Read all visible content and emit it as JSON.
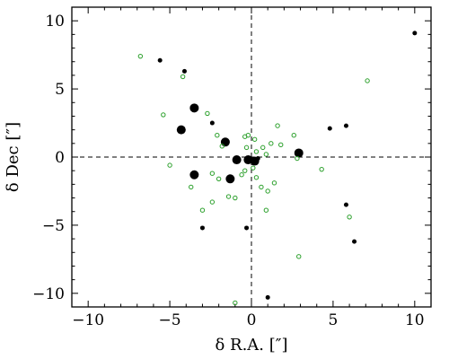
{
  "chart_data": {
    "type": "scatter",
    "title": "",
    "xlabel": "δ R.A. [″]",
    "ylabel": "δ Dec [″]",
    "xlim": [
      -11,
      11
    ],
    "ylim": [
      -11,
      11
    ],
    "xticks": [
      -10,
      -5,
      0,
      5,
      10
    ],
    "yticks": [
      -10,
      -5,
      0,
      5,
      10
    ],
    "xtick_labels": [
      "−10",
      "−5",
      "0",
      "5",
      "10"
    ],
    "ytick_labels": [
      "−10",
      "−5",
      "0",
      "5",
      "10"
    ],
    "reference_lines": {
      "x": 0,
      "y": 0,
      "style": "dashed"
    },
    "grid": false,
    "legend": "none",
    "series": [
      {
        "marker": "filled-circle",
        "color": "#000000",
        "points": [
          {
            "x": -5.6,
            "y": 7.1,
            "size": "small"
          },
          {
            "x": -4.1,
            "y": 6.3,
            "size": "small"
          },
          {
            "x": -3.5,
            "y": 3.6,
            "size": "large"
          },
          {
            "x": -4.3,
            "y": 2.0,
            "size": "large"
          },
          {
            "x": -2.4,
            "y": 2.5,
            "size": "small"
          },
          {
            "x": -1.6,
            "y": 1.1,
            "size": "large"
          },
          {
            "x": -3.5,
            "y": -1.3,
            "size": "large"
          },
          {
            "x": -1.3,
            "y": -1.6,
            "size": "large"
          },
          {
            "x": -0.9,
            "y": -0.2,
            "size": "large"
          },
          {
            "x": -0.2,
            "y": -0.2,
            "size": "large"
          },
          {
            "x": 0.2,
            "y": -0.3,
            "size": "large"
          },
          {
            "x": 0.4,
            "y": -0.1,
            "size": "small"
          },
          {
            "x": 2.9,
            "y": 0.3,
            "size": "large"
          },
          {
            "x": 4.8,
            "y": 2.1,
            "size": "small"
          },
          {
            "x": 5.8,
            "y": 2.3,
            "size": "small"
          },
          {
            "x": 5.8,
            "y": -3.5,
            "size": "small"
          },
          {
            "x": 6.3,
            "y": -6.2,
            "size": "small"
          },
          {
            "x": -3.0,
            "y": -5.2,
            "size": "small"
          },
          {
            "x": -0.3,
            "y": -5.2,
            "size": "small"
          },
          {
            "x": 1.0,
            "y": -10.3,
            "size": "small"
          },
          {
            "x": 10.0,
            "y": 9.1,
            "size": "small"
          }
        ]
      },
      {
        "marker": "open-circle",
        "color": "#2ca02c",
        "points": [
          {
            "x": -6.8,
            "y": 7.4
          },
          {
            "x": -4.2,
            "y": 5.9
          },
          {
            "x": -5.4,
            "y": 3.1
          },
          {
            "x": -2.7,
            "y": 3.2
          },
          {
            "x": -2.1,
            "y": 1.6
          },
          {
            "x": -1.8,
            "y": 0.8
          },
          {
            "x": -5.0,
            "y": -0.6
          },
          {
            "x": -2.4,
            "y": -1.2
          },
          {
            "x": -2.0,
            "y": -1.6
          },
          {
            "x": -3.7,
            "y": -2.2
          },
          {
            "x": -1.4,
            "y": -2.9
          },
          {
            "x": -1.0,
            "y": -3.0
          },
          {
            "x": -2.4,
            "y": -3.3
          },
          {
            "x": -3.0,
            "y": -3.9
          },
          {
            "x": -1.0,
            "y": -10.7
          },
          {
            "x": -0.4,
            "y": 1.5
          },
          {
            "x": -0.2,
            "y": 1.6
          },
          {
            "x": 0.2,
            "y": 1.3
          },
          {
            "x": -0.3,
            "y": 0.7
          },
          {
            "x": 0.3,
            "y": 0.4
          },
          {
            "x": 0.7,
            "y": 0.7
          },
          {
            "x": 0.9,
            "y": 0.2
          },
          {
            "x": 1.2,
            "y": 1.0
          },
          {
            "x": 1.6,
            "y": 2.3
          },
          {
            "x": 1.8,
            "y": 0.9
          },
          {
            "x": 2.6,
            "y": 1.6
          },
          {
            "x": 2.8,
            "y": -0.1
          },
          {
            "x": -0.6,
            "y": -1.3
          },
          {
            "x": -0.4,
            "y": -1.0
          },
          {
            "x": 0.1,
            "y": -0.8
          },
          {
            "x": 0.3,
            "y": -1.5
          },
          {
            "x": 0.6,
            "y": -2.2
          },
          {
            "x": 1.0,
            "y": -2.5
          },
          {
            "x": 1.4,
            "y": -1.9
          },
          {
            "x": 0.9,
            "y": -3.9
          },
          {
            "x": 4.3,
            "y": -0.9
          },
          {
            "x": 7.1,
            "y": 5.6
          },
          {
            "x": 6.0,
            "y": -4.4
          },
          {
            "x": 2.9,
            "y": -7.3
          }
        ]
      }
    ]
  }
}
